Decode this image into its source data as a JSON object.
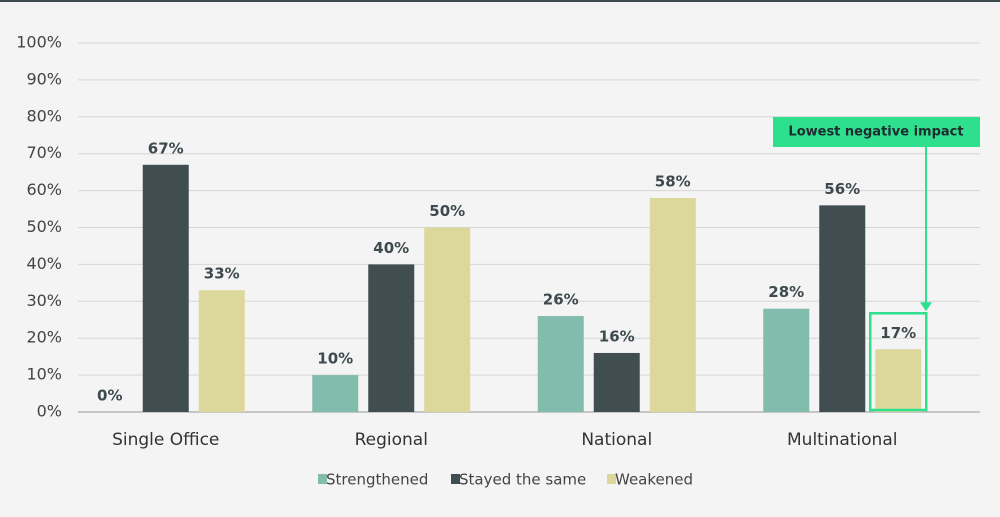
{
  "chart_data": {
    "type": "bar",
    "categories": [
      "Single Office",
      "Regional",
      "National",
      "Multinational"
    ],
    "series": [
      {
        "name": "Strengthened",
        "color": "#82bcad",
        "values": [
          0,
          10,
          26,
          28
        ],
        "value_labels": [
          "0%",
          "10%",
          "26%",
          "28%"
        ]
      },
      {
        "name": "Stayed the same",
        "color": "#404e52",
        "values": [
          67,
          40,
          16,
          56
        ],
        "value_labels": [
          "67%",
          "40%",
          "16%",
          "56%"
        ]
      },
      {
        "name": "Weakened",
        "color": "#dcd79b",
        "values": [
          33,
          50,
          58,
          17
        ],
        "value_labels": [
          "33%",
          "50%",
          "58%",
          "17%"
        ]
      }
    ],
    "ylim": [
      0,
      100
    ],
    "yticks": [
      {
        "value": 0,
        "label": "0%"
      },
      {
        "value": 10,
        "label": "10%"
      },
      {
        "value": 20,
        "label": "20%"
      },
      {
        "value": 30,
        "label": "30%"
      },
      {
        "value": 40,
        "label": "40%"
      },
      {
        "value": 50,
        "label": "50%"
      },
      {
        "value": 60,
        "label": "60%"
      },
      {
        "value": 70,
        "label": "70%"
      },
      {
        "value": 80,
        "label": "80%"
      },
      {
        "value": 90,
        "label": "90%"
      },
      {
        "value": 100,
        "label": "100%"
      }
    ],
    "grid": true,
    "legend": "bottom",
    "annotation": {
      "text": "Lowest negative impact",
      "color": "#2ee08e"
    }
  }
}
